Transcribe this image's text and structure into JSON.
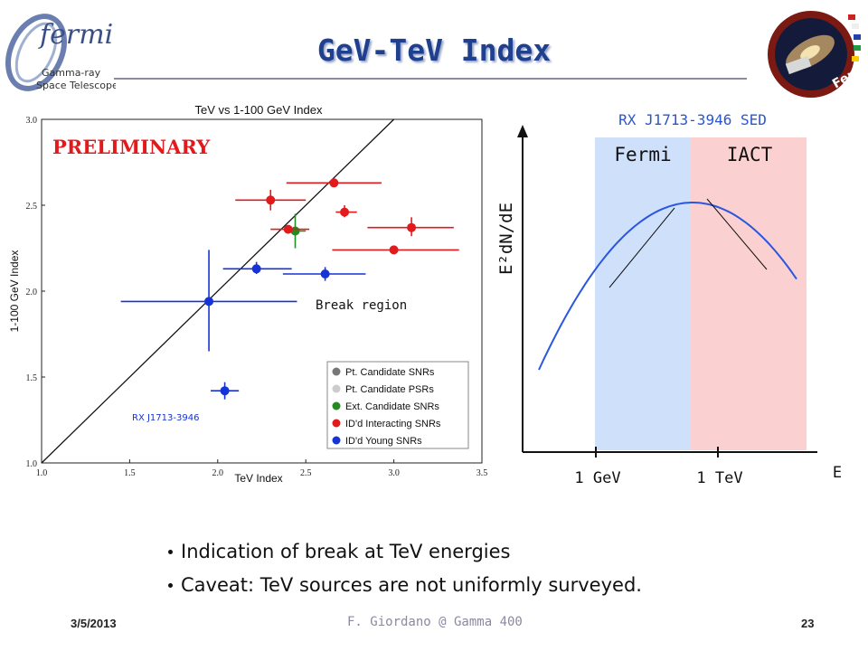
{
  "slide": {
    "title": "GeV-TeV Index",
    "logo_text": {
      "brand": "fermi",
      "line1": "Gamma-ray",
      "line2": "Space Telescope"
    },
    "patch_text": "Fermi",
    "bullets": [
      "Indication of break at TeV energies",
      "Caveat: TeV sources are not uniformly surveyed."
    ],
    "footer": {
      "date": "3/5/2013",
      "center": "F. Giordano @ Gamma 400",
      "page": "23"
    }
  },
  "colors": {
    "title": "#1f3f8f",
    "red_series": "#e31a1c",
    "blue_series": "#1533d6",
    "green_series": "#228b22",
    "fermi_band": "#cfe0fb",
    "iact_band": "#fbd0d0",
    "sed_curve": "#2a56e0",
    "sed_title": "#2a56cc"
  },
  "chart_data": [
    {
      "type": "scatter",
      "title": "TeV vs 1-100 GeV Index",
      "xlabel": "TeV Index",
      "ylabel": "1-100 GeV Index",
      "xlim": [
        1.0,
        3.5
      ],
      "ylim": [
        1.0,
        3.0
      ],
      "xticks": [
        "1.0",
        "1.5",
        "2.0",
        "2.5",
        "3.0",
        "3.5"
      ],
      "yticks": [
        "1.0",
        "1.5",
        "2.0",
        "2.5",
        "3.0"
      ],
      "grid": false,
      "legend_position": "bottom-right",
      "reference_line": "y = x",
      "annotations": {
        "stamp": "PRELIMINARY",
        "region": "Break region",
        "source": "RX J1713-3946"
      },
      "series": [
        {
          "name": "Pt. Candidate SNRs",
          "color": "#777777",
          "points": []
        },
        {
          "name": "Pt. Candidate PSRs",
          "color": "#cccccc",
          "points": []
        },
        {
          "name": "Ext. Candidate SNRs",
          "color": "#228b22",
          "points": [
            {
              "x": 2.44,
              "y": 2.35,
              "xerr": [
                2.39,
                2.5
              ],
              "yerr": [
                2.25,
                2.45
              ]
            }
          ]
        },
        {
          "name": "ID'd Interacting SNRs",
          "color": "#e31a1c",
          "points": [
            {
              "x": 2.66,
              "y": 2.63,
              "xerr": [
                2.39,
                2.93
              ]
            },
            {
              "x": 2.3,
              "y": 2.53,
              "xerr": [
                2.1,
                2.5
              ],
              "yerr": [
                2.47,
                2.59
              ]
            },
            {
              "x": 2.72,
              "y": 2.46,
              "xerr": [
                2.67,
                2.79
              ],
              "yerr": [
                2.43,
                2.5
              ]
            },
            {
              "x": 2.4,
              "y": 2.36,
              "xerr": [
                2.3,
                2.52
              ]
            },
            {
              "x": 3.1,
              "y": 2.37,
              "xerr": [
                2.85,
                3.34
              ],
              "yerr": [
                2.32,
                2.43
              ]
            },
            {
              "x": 3.0,
              "y": 2.24,
              "xerr": [
                2.65,
                3.37
              ]
            }
          ]
        },
        {
          "name": "ID'd Young SNRs",
          "color": "#1533d6",
          "points": [
            {
              "x": 2.22,
              "y": 2.13,
              "xerr": [
                2.03,
                2.42
              ],
              "yerr": [
                2.1,
                2.17
              ]
            },
            {
              "x": 2.61,
              "y": 2.1,
              "xerr": [
                2.37,
                2.84
              ],
              "yerr": [
                2.06,
                2.14
              ]
            },
            {
              "x": 1.95,
              "y": 1.94,
              "xerr": [
                1.45,
                2.45
              ],
              "yerr": [
                1.65,
                2.24
              ]
            },
            {
              "x": 2.04,
              "y": 1.42,
              "xerr": [
                1.96,
                2.12
              ],
              "yerr": [
                1.37,
                1.47
              ]
            }
          ]
        }
      ]
    },
    {
      "type": "line",
      "title": "RX J1713-3946 SED",
      "xlabel": "E",
      "ylabel": "E²dN/dE",
      "xticks": [
        "1 GeV",
        "1 TeV"
      ],
      "bands": [
        "Fermi",
        "IACT"
      ],
      "curve": "log-parabola with tangent slopes at the Fermi and IACT energy bands"
    }
  ]
}
